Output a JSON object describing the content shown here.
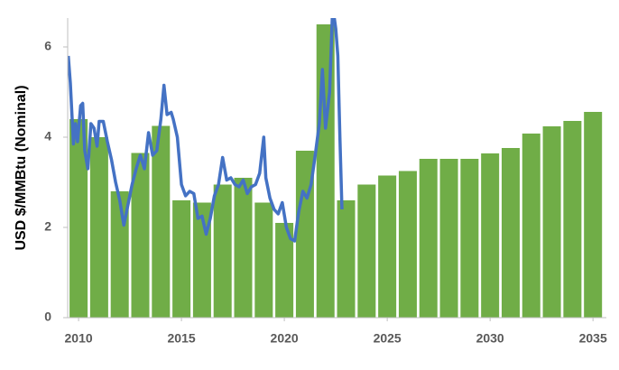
{
  "chart_data": {
    "type": "bar",
    "ylabel": "USD $/MMBtu (Nominal)",
    "xlim": [
      2009.47,
      2035.65
    ],
    "xticks": [
      2010,
      2015,
      2020,
      2025,
      2030,
      2035
    ],
    "ylim": [
      0,
      6.64
    ],
    "yticks": [
      0,
      2,
      4,
      6
    ],
    "series": [
      {
        "type": "bar",
        "color": "#70ad47",
        "x": [
          2010,
          2011,
          2012,
          2013,
          2014,
          2015,
          2016,
          2017,
          2018,
          2019,
          2020,
          2021,
          2022,
          2023,
          2024,
          2025,
          2026,
          2027,
          2028,
          2029,
          2030,
          2031,
          2032,
          2033,
          2034,
          2035
        ],
        "values": [
          4.4,
          4.0,
          2.8,
          3.65,
          4.25,
          2.6,
          2.55,
          2.95,
          3.1,
          2.55,
          2.1,
          3.7,
          6.5,
          2.6,
          2.95,
          3.15,
          3.25,
          3.52,
          3.52,
          3.52,
          3.64,
          3.76,
          4.08,
          4.24,
          4.36,
          4.56
        ]
      },
      {
        "type": "line",
        "color": "#4472c4",
        "x": [
          2009.5,
          2009.6,
          2009.75,
          2009.85,
          2009.95,
          2010.1,
          2010.2,
          2010.3,
          2010.45,
          2010.6,
          2010.75,
          2010.9,
          2011.0,
          2011.2,
          2011.4,
          2011.6,
          2011.8,
          2012.0,
          2012.2,
          2012.4,
          2012.6,
          2012.8,
          2013.0,
          2013.2,
          2013.4,
          2013.6,
          2013.8,
          2014.0,
          2014.15,
          2014.3,
          2014.5,
          2014.6,
          2014.8,
          2015.0,
          2015.2,
          2015.4,
          2015.6,
          2015.8,
          2016.0,
          2016.2,
          2016.4,
          2016.6,
          2016.8,
          2017.0,
          2017.2,
          2017.4,
          2017.6,
          2017.8,
          2018.0,
          2018.2,
          2018.4,
          2018.6,
          2018.8,
          2019.0,
          2019.1,
          2019.3,
          2019.5,
          2019.7,
          2019.9,
          2020.1,
          2020.3,
          2020.5,
          2020.7,
          2020.9,
          2021.1,
          2021.3,
          2021.5,
          2021.7,
          2021.85,
          2022.0,
          2022.1,
          2022.2,
          2022.35,
          2022.5,
          2022.6,
          2022.7,
          2022.8
        ],
        "values": [
          5.8,
          5.2,
          3.85,
          4.3,
          3.9,
          4.7,
          4.75,
          3.7,
          3.3,
          4.3,
          4.2,
          3.8,
          4.35,
          4.35,
          3.9,
          3.5,
          3.0,
          2.6,
          2.05,
          2.5,
          2.95,
          3.3,
          3.6,
          3.3,
          4.1,
          3.6,
          3.7,
          4.4,
          5.15,
          4.5,
          4.55,
          4.4,
          4.0,
          2.95,
          2.7,
          2.8,
          2.75,
          2.2,
          2.25,
          1.85,
          2.2,
          2.7,
          2.95,
          3.55,
          3.05,
          3.1,
          2.95,
          2.9,
          3.05,
          2.75,
          2.9,
          2.95,
          3.2,
          4.0,
          3.1,
          2.65,
          2.4,
          2.3,
          2.55,
          2.0,
          1.75,
          1.7,
          2.35,
          2.8,
          2.65,
          2.95,
          3.6,
          4.3,
          5.5,
          4.2,
          4.6,
          5.0,
          6.9,
          6.4,
          5.8,
          4.0,
          2.4
        ]
      }
    ]
  }
}
